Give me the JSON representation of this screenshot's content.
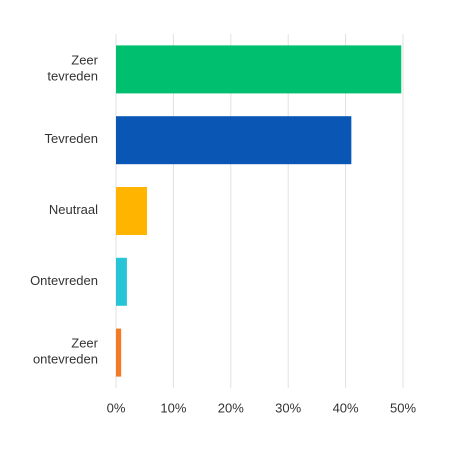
{
  "chart_data": {
    "type": "bar",
    "orientation": "horizontal",
    "categories": [
      "Zeer tevreden",
      "Tevreden",
      "Neutraal",
      "Ontevreden",
      "Zeer ontevreden"
    ],
    "values": [
      49.7,
      41,
      5.4,
      1.9,
      0.9
    ],
    "colors": [
      "#00bf6f",
      "#0a56b4",
      "#ffb400",
      "#27c4d8",
      "#f47a26"
    ],
    "xlim": [
      0,
      50
    ],
    "xticks": [
      {
        "value": 0,
        "label": "0%"
      },
      {
        "value": 10,
        "label": "10%"
      },
      {
        "value": 20,
        "label": "20%"
      },
      {
        "value": 30,
        "label": "30%"
      },
      {
        "value": 40,
        "label": "40%"
      },
      {
        "value": 50,
        "label": "50%"
      }
    ],
    "grid": true
  }
}
